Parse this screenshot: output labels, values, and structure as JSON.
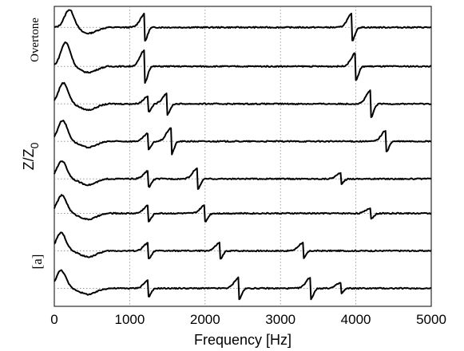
{
  "chart_data": {
    "type": "line",
    "xlabel": "Frequency [Hz]",
    "ylabel": "Z/Z",
    "ylabel_subscript": "0",
    "top_label": "Overtone",
    "bottom_label": "[a]",
    "xlim": [
      0,
      5000
    ],
    "xticks": [
      0,
      1000,
      2000,
      3000,
      4000,
      5000
    ],
    "xtick_labels": [
      "0",
      "1000",
      "2000",
      "3000",
      "4000",
      "5000"
    ],
    "grid": true,
    "line_color": "#000000",
    "series_baselines": [
      0.93,
      0.8,
      0.675,
      0.55,
      0.425,
      0.31,
      0.185,
      0.06
    ],
    "series": [
      {
        "features": [
          [
            200,
            0.06
          ],
          [
            1200,
            0.05
          ],
          [
            3950,
            -0.05
          ]
        ]
      },
      {
        "features": [
          [
            150,
            0.08
          ],
          [
            1200,
            -0.06
          ],
          [
            4000,
            -0.05
          ]
        ]
      },
      {
        "features": [
          [
            120,
            0.07
          ],
          [
            1250,
            0.03
          ],
          [
            1500,
            -0.04
          ],
          [
            4200,
            -0.05
          ]
        ]
      },
      {
        "features": [
          [
            110,
            0.07
          ],
          [
            1250,
            0.03
          ],
          [
            1550,
            -0.05
          ],
          [
            4400,
            -0.04
          ]
        ]
      },
      {
        "features": [
          [
            100,
            0.06
          ],
          [
            1250,
            0.03
          ],
          [
            1900,
            -0.04
          ],
          [
            3800,
            -0.02
          ]
        ]
      },
      {
        "features": [
          [
            100,
            0.06
          ],
          [
            1250,
            0.03
          ],
          [
            2000,
            -0.03
          ],
          [
            4200,
            -0.02
          ]
        ]
      },
      {
        "features": [
          [
            90,
            0.06
          ],
          [
            1250,
            0.03
          ],
          [
            2200,
            -0.03
          ],
          [
            3300,
            -0.03
          ]
        ]
      },
      {
        "features": [
          [
            90,
            0.06
          ],
          [
            1250,
            -0.03
          ],
          [
            2450,
            -0.04
          ],
          [
            3400,
            -0.04
          ],
          [
            3800,
            -0.02
          ]
        ]
      }
    ]
  }
}
